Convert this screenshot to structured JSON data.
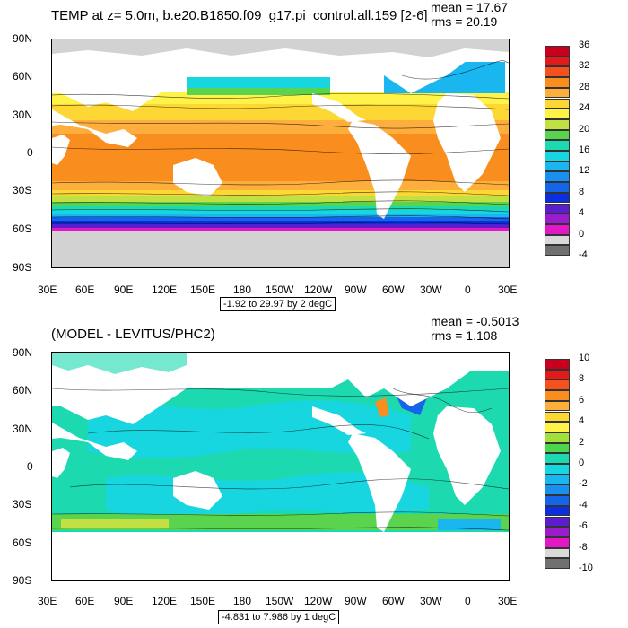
{
  "panels": [
    {
      "title": "TEMP at z=   5.0m, b.e20.B1850.f09_g17.pi_control.all.159 [2-6]",
      "mean": "mean = 17.67",
      "rms": "rms = 20.19",
      "range_text": "-1.92 to 29.97 by 2 degC",
      "lat_ticks": [
        "90N",
        "60N",
        "30N",
        "0",
        "30S",
        "60S",
        "90S"
      ],
      "lon_ticks": [
        "30E",
        "60E",
        "90E",
        "120E",
        "150E",
        "180",
        "150W",
        "120W",
        "90W",
        "60W",
        "30W",
        "0",
        "30E"
      ],
      "colorbar_labels": [
        "36",
        "32",
        "28",
        "24",
        "20",
        "16",
        "12",
        "8",
        "4",
        "0",
        "-4"
      ],
      "colorbar_colors": [
        "#c8001e",
        "#e31a1c",
        "#f4511e",
        "#f98d1d",
        "#fdae3c",
        "#fdd835",
        "#fff34a",
        "#c0e044",
        "#5ad44e",
        "#1dd9b0",
        "#18d6e0",
        "#19b6f0",
        "#1890f0",
        "#1565e8",
        "#0a2ee0",
        "#5a1ecf",
        "#9a1ccc",
        "#e317c6",
        "#d9d9d9",
        "#707070"
      ]
    },
    {
      "title": "(MODEL - LEVITUS/PHC2)",
      "mean": "mean = -0.5013",
      "rms": "rms = 1.108",
      "range_text": "-4.831 to 7.986 by 1 degC",
      "lat_ticks": [
        "90N",
        "60N",
        "30N",
        "0",
        "30S",
        "60S",
        "90S"
      ],
      "lon_ticks": [
        "30E",
        "60E",
        "90E",
        "120E",
        "150E",
        "180",
        "150W",
        "120W",
        "90W",
        "60W",
        "30W",
        "0",
        "30E"
      ],
      "colorbar_labels": [
        "10",
        "8",
        "6",
        "4",
        "2",
        "0",
        "-2",
        "-4",
        "-6",
        "-8",
        "-10"
      ],
      "colorbar_colors": [
        "#c8001e",
        "#e31a1c",
        "#f4511e",
        "#f98d1d",
        "#fdae3c",
        "#fdd835",
        "#fff34a",
        "#a4e03a",
        "#4cd64e",
        "#1dd9b0",
        "#18d6e0",
        "#19b6f0",
        "#1890f0",
        "#1565e8",
        "#0a2ee0",
        "#5a1ecf",
        "#9a1ccc",
        "#e317c6",
        "#d9d9d9",
        "#707070"
      ]
    }
  ]
}
